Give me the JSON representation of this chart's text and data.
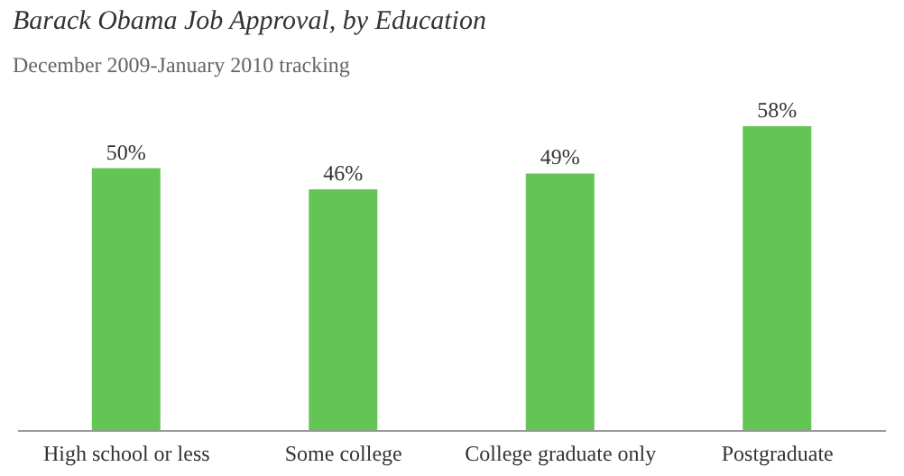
{
  "chart_data": {
    "type": "bar",
    "title": "Barack Obama Job Approval, by Education",
    "subtitle": "December 2009-January 2010 tracking",
    "categories": [
      "High school or less",
      "Some college",
      "College graduate only",
      "Postgraduate"
    ],
    "values": [
      50,
      46,
      49,
      58
    ],
    "value_labels": [
      "50%",
      "46%",
      "49%",
      "58%"
    ],
    "color": "#63c553",
    "grid": false,
    "legend": false
  }
}
